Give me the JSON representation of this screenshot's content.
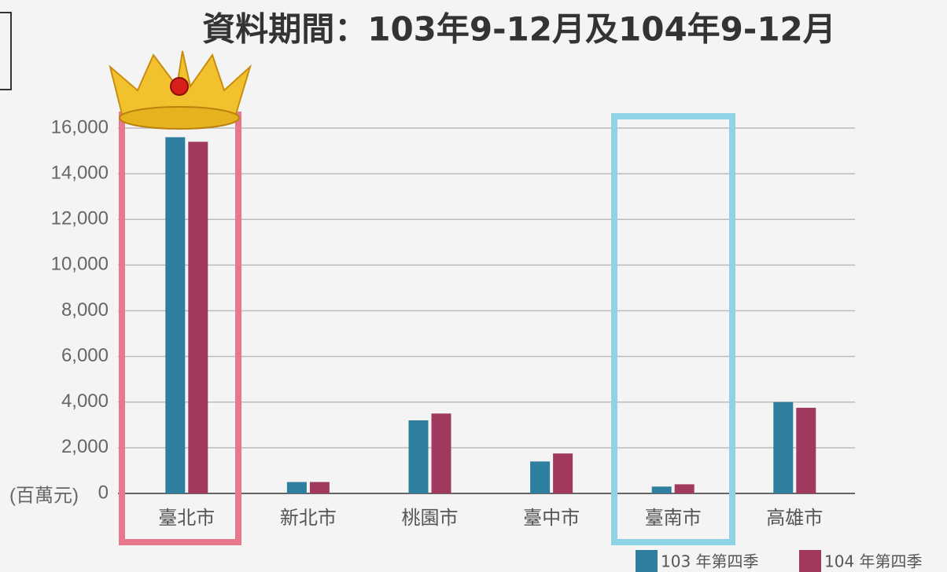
{
  "chart_data": {
    "type": "bar",
    "title": "資料期間：103年9-12月及104年9-12月",
    "y_unit": "(百萬元)",
    "categories": [
      "臺北市",
      "新北市",
      "桃園市",
      "臺中市",
      "臺南市",
      "高雄市"
    ],
    "series": [
      {
        "name": "103 年第四季",
        "color": "#2e7f9e",
        "values": [
          15600,
          500,
          3200,
          1400,
          300,
          4000
        ]
      },
      {
        "name": "104 年第四季",
        "color": "#a23a5f",
        "values": [
          15400,
          500,
          3500,
          1750,
          400,
          3750
        ]
      }
    ],
    "ylim": [
      0,
      16000
    ],
    "yticks": [
      0,
      {
        "value": 2000,
        "label": "2,000"
      },
      {
        "value": 4000,
        "label": "4,000"
      },
      {
        "value": 6000,
        "label": "6,000"
      },
      {
        "value": 8000,
        "label": "8,000"
      },
      {
        "value": 10000,
        "label": "10,000"
      },
      {
        "value": 12000,
        "label": "12,000"
      },
      {
        "value": 14000,
        "label": "14,000"
      },
      {
        "value": 16000,
        "label": "16,000"
      }
    ],
    "grid": true
  }
}
